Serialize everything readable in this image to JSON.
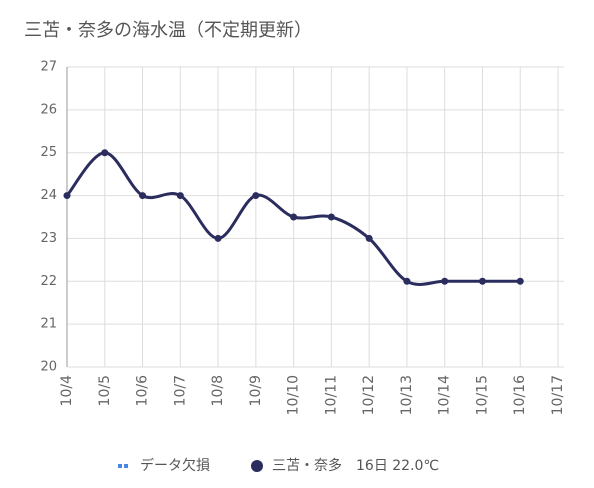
{
  "chart_data": {
    "type": "line",
    "title": "三苫・奈多の海水温（不定期更新）",
    "categories": [
      "10/4",
      "10/5",
      "10/6",
      "10/7",
      "10/8",
      "10/9",
      "10/10",
      "10/11",
      "10/12",
      "10/13",
      "10/14",
      "10/15",
      "10/16",
      "10/17"
    ],
    "series": [
      {
        "name": "三苫・奈多　16日 22.0℃",
        "color": "#2b2d5e",
        "values": [
          24,
          25,
          24,
          24,
          23,
          24,
          23.5,
          23.5,
          23,
          22,
          22,
          22,
          22,
          null
        ]
      }
    ],
    "missing_legend": {
      "label": "データ欠損",
      "color": "#4a86e8"
    },
    "ylim": [
      20,
      27
    ],
    "yticks": [
      20,
      21,
      22,
      23,
      24,
      25,
      26,
      27
    ],
    "grid": true
  }
}
